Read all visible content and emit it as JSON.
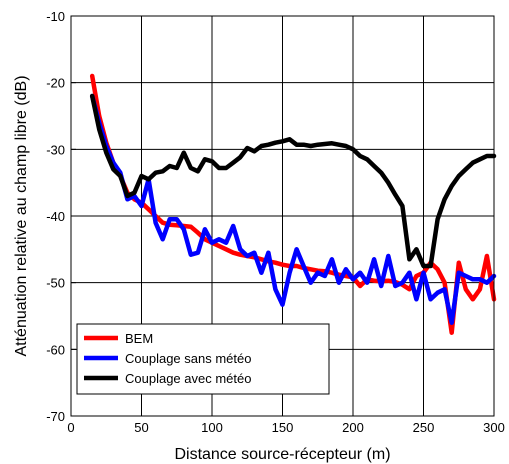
{
  "chart_data": {
    "type": "line",
    "title": "",
    "xlabel": "Distance source-récepteur (m)",
    "ylabel": "Atténuation relative au champ libre (dB)",
    "xlim": [
      0,
      300
    ],
    "ylim": [
      -70,
      -10
    ],
    "xticks": [
      0,
      50,
      100,
      150,
      200,
      250,
      300
    ],
    "yticks": [
      -70,
      -60,
      -50,
      -40,
      -30,
      -20,
      -10
    ],
    "grid": true,
    "legend_position": "bottom-left",
    "series": [
      {
        "name": "BEM",
        "color": "#ff0000",
        "x": [
          15,
          20,
          25,
          30,
          35,
          40,
          45,
          50,
          55,
          60,
          65,
          70,
          75,
          80,
          85,
          90,
          95,
          100,
          105,
          110,
          115,
          120,
          125,
          130,
          135,
          140,
          145,
          150,
          155,
          160,
          165,
          170,
          175,
          180,
          185,
          190,
          195,
          200,
          205,
          210,
          215,
          220,
          225,
          230,
          235,
          240,
          245,
          250,
          255,
          260,
          265,
          270,
          275,
          280,
          285,
          290,
          295,
          300
        ],
        "y": [
          -19,
          -25,
          -29,
          -32,
          -34,
          -36.5,
          -37.5,
          -38,
          -39,
          -40,
          -41,
          -41.3,
          -41.4,
          -41.5,
          -41.6,
          -42.5,
          -43.5,
          -44,
          -44.5,
          -45,
          -45.5,
          -45.8,
          -46,
          -46.2,
          -46.5,
          -46.8,
          -47,
          -47.3,
          -47.5,
          -47.5,
          -47.8,
          -48,
          -48.2,
          -48.3,
          -48.5,
          -48.8,
          -49,
          -49.2,
          -50.5,
          -49.5,
          -49.7,
          -49.8,
          -49.7,
          -49.9,
          -50.3,
          -51,
          -49,
          -48.5,
          -47,
          -48,
          -50,
          -57.5,
          -47,
          -51,
          -52.5,
          -51,
          -46,
          -52.5
        ]
      },
      {
        "name": "Couplage sans météo",
        "color": "#0000ff",
        "x": [
          15,
          20,
          25,
          30,
          35,
          40,
          45,
          50,
          55,
          60,
          65,
          70,
          75,
          80,
          85,
          90,
          95,
          100,
          105,
          110,
          115,
          120,
          125,
          130,
          135,
          140,
          145,
          150,
          155,
          160,
          165,
          170,
          175,
          180,
          185,
          190,
          195,
          200,
          205,
          210,
          215,
          220,
          225,
          230,
          235,
          240,
          245,
          250,
          255,
          260,
          265,
          270,
          275,
          280,
          285,
          290,
          295,
          300
        ],
        "y": [
          -22,
          -26,
          -29.5,
          -32,
          -33.5,
          -37.5,
          -37,
          -38.5,
          -34.5,
          -41,
          -43.5,
          -40.5,
          -40.5,
          -42,
          -45.8,
          -45.5,
          -42,
          -44,
          -43.5,
          -44,
          -41.5,
          -45,
          -46,
          -45.5,
          -48.5,
          -45.5,
          -51,
          -53.3,
          -48.5,
          -45,
          -47.5,
          -50,
          -48.5,
          -49,
          -46.5,
          -50,
          -48,
          -49.5,
          -48.5,
          -50,
          -46.5,
          -50.5,
          -46,
          -50.5,
          -50,
          -48.5,
          -52.5,
          -48.5,
          -52.5,
          -51.5,
          -51,
          -56,
          -48.5,
          -49,
          -49.5,
          -49.5,
          -50,
          -49
        ]
      },
      {
        "name": "Couplage avec météo",
        "color": "#000000",
        "x": [
          15,
          20,
          25,
          30,
          35,
          40,
          45,
          50,
          55,
          60,
          65,
          70,
          75,
          80,
          85,
          90,
          95,
          100,
          105,
          110,
          115,
          120,
          125,
          130,
          135,
          140,
          145,
          150,
          155,
          160,
          165,
          170,
          175,
          180,
          185,
          190,
          195,
          200,
          205,
          210,
          215,
          220,
          225,
          230,
          235,
          240,
          245,
          250,
          255,
          260,
          265,
          270,
          275,
          280,
          285,
          290,
          295,
          300
        ],
        "y": [
          -22,
          -27,
          -30.5,
          -33,
          -34,
          -37,
          -36.5,
          -34,
          -34.5,
          -33.5,
          -33.3,
          -32.5,
          -32.8,
          -30.5,
          -32.8,
          -33.3,
          -31.5,
          -31.8,
          -32.8,
          -32.8,
          -32,
          -31.2,
          -29.8,
          -30.3,
          -29.5,
          -29.3,
          -29,
          -28.8,
          -28.5,
          -29.3,
          -29.3,
          -29.5,
          -29.3,
          -29.2,
          -29.1,
          -29.3,
          -29.5,
          -30,
          -31,
          -31.5,
          -32.5,
          -33.5,
          -35,
          -36.8,
          -38.5,
          -46.5,
          -45,
          -47.5,
          -47.5,
          -40.5,
          -37.5,
          -35.5,
          -34,
          -33,
          -32,
          -31.5,
          -31,
          -31
        ]
      }
    ]
  }
}
